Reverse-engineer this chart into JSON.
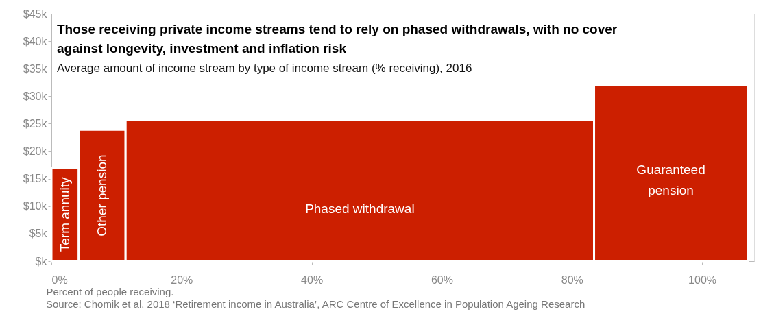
{
  "chart_data": {
    "type": "histogram",
    "title": "Those receiving private income streams tend to rely on phased withdrawals, with no cover against longevity, investment and inflation risk",
    "subtitle": "Average amount of income stream by type of income stream (% receiving), 2016",
    "xlabel": "Percent of people receiving.",
    "bins": [
      0,
      4.2,
      11.4,
      83.4,
      107
    ],
    "values": [
      17.0,
      23.9,
      25.7,
      32.0
    ],
    "color": "#cc1f00",
    "xlim": [
      0,
      108
    ],
    "xticks": [
      {
        "value": 0,
        "label": "0%"
      },
      {
        "value": 20,
        "label": "20%"
      },
      {
        "value": 40,
        "label": "40%"
      },
      {
        "value": 60,
        "label": "60%"
      },
      {
        "value": 80,
        "label": "80%"
      },
      {
        "value": 100,
        "label": "100%"
      }
    ],
    "ylim": [
      0,
      45
    ],
    "yticks": [
      {
        "value": 0,
        "label": "$k"
      },
      {
        "value": 5,
        "label": "$5k"
      },
      {
        "value": 10,
        "label": "$10k"
      },
      {
        "value": 15,
        "label": "$15k"
      },
      {
        "value": 20,
        "label": "$20k"
      },
      {
        "value": 25,
        "label": "$25k"
      },
      {
        "value": 30,
        "label": "$30k"
      },
      {
        "value": 35,
        "label": "$35k"
      },
      {
        "value": 40,
        "label": "$40k"
      },
      {
        "value": 45,
        "label": "$45k"
      }
    ],
    "grid": false,
    "annotations": [
      "Term annuity",
      "Other pension",
      "Phased withdrawal",
      "Guaranteed\npension",
      "Source: Chomik et al. 2018 ‘Retirement income in Australia’, ARC Centre of Excellence in Population Ageing Research"
    ]
  }
}
